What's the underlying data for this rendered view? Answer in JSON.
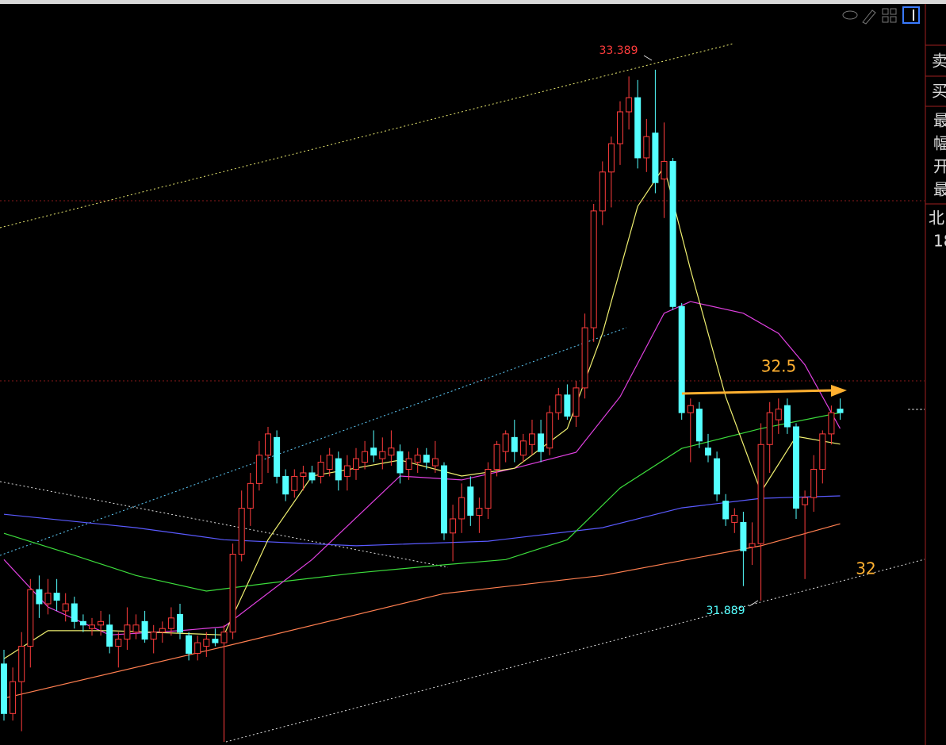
{
  "chart_data": {
    "type": "candlestick",
    "ylim": [
      31.481,
      33.586
    ],
    "up_color": "#ff3c3c",
    "down_color": "#54ffff",
    "candles": [
      [
        31.71,
        31.75,
        31.55,
        31.57
      ],
      [
        31.57,
        31.7,
        31.55,
        31.66
      ],
      [
        31.66,
        31.8,
        31.52,
        31.76
      ],
      [
        31.76,
        31.95,
        31.7,
        31.92
      ],
      [
        31.92,
        31.96,
        31.84,
        31.88
      ],
      [
        31.88,
        31.95,
        31.85,
        31.91
      ],
      [
        31.91,
        31.95,
        31.86,
        31.89
      ],
      [
        31.86,
        31.91,
        31.83,
        31.88
      ],
      [
        31.88,
        31.9,
        31.81,
        31.83
      ],
      [
        31.83,
        31.85,
        31.8,
        31.82
      ],
      [
        31.81,
        31.84,
        31.79,
        31.82
      ],
      [
        31.82,
        31.86,
        31.79,
        31.83
      ],
      [
        31.82,
        31.85,
        31.74,
        31.76
      ],
      [
        31.76,
        31.8,
        31.7,
        31.78
      ],
      [
        31.78,
        31.87,
        31.75,
        31.82
      ],
      [
        31.8,
        31.85,
        31.78,
        31.82
      ],
      [
        31.83,
        31.86,
        31.77,
        31.78
      ],
      [
        31.78,
        31.82,
        31.74,
        31.8
      ],
      [
        31.8,
        31.83,
        31.77,
        31.81
      ],
      [
        31.81,
        31.87,
        31.79,
        31.84
      ],
      [
        31.85,
        31.88,
        31.78,
        31.8
      ],
      [
        31.79,
        31.8,
        31.72,
        31.74
      ],
      [
        31.74,
        31.79,
        31.72,
        31.77
      ],
      [
        31.76,
        31.8,
        31.73,
        31.78
      ],
      [
        31.78,
        31.81,
        31.76,
        31.77
      ],
      [
        31.77,
        31.82,
        31.49,
        31.8
      ],
      [
        31.8,
        32.05,
        31.78,
        32.02
      ],
      [
        32.02,
        32.2,
        32.0,
        32.15
      ],
      [
        32.15,
        32.25,
        32.1,
        32.22
      ],
      [
        32.22,
        32.34,
        32.2,
        32.3
      ],
      [
        32.3,
        32.38,
        32.25,
        32.36
      ],
      [
        32.35,
        32.37,
        32.22,
        32.24
      ],
      [
        32.24,
        32.26,
        32.17,
        32.19
      ],
      [
        32.2,
        32.26,
        32.18,
        32.24
      ],
      [
        32.24,
        32.27,
        32.2,
        32.25
      ],
      [
        32.25,
        32.27,
        32.22,
        32.23
      ],
      [
        32.24,
        32.3,
        32.22,
        32.28
      ],
      [
        32.26,
        32.32,
        32.24,
        32.3
      ],
      [
        32.29,
        32.31,
        32.2,
        32.23
      ],
      [
        32.24,
        32.3,
        32.2,
        32.27
      ],
      [
        32.26,
        32.32,
        32.23,
        32.29
      ],
      [
        32.28,
        32.34,
        32.26,
        32.31
      ],
      [
        32.32,
        32.37,
        32.28,
        32.3
      ],
      [
        32.29,
        32.35,
        32.26,
        32.31
      ],
      [
        32.3,
        32.37,
        32.27,
        32.32
      ],
      [
        32.31,
        32.33,
        32.22,
        32.25
      ],
      [
        32.26,
        32.31,
        32.23,
        32.29
      ],
      [
        32.28,
        32.32,
        32.25,
        32.3
      ],
      [
        32.3,
        32.32,
        32.26,
        32.28
      ],
      [
        32.27,
        32.34,
        32.25,
        32.29
      ],
      [
        32.27,
        32.28,
        32.06,
        32.08
      ],
      [
        32.08,
        32.16,
        32.0,
        32.12
      ],
      [
        32.12,
        32.22,
        32.08,
        32.18
      ],
      [
        32.21,
        32.24,
        32.1,
        32.13
      ],
      [
        32.13,
        32.18,
        32.08,
        32.15
      ],
      [
        32.15,
        32.28,
        32.12,
        32.26
      ],
      [
        32.26,
        32.34,
        32.24,
        32.33
      ],
      [
        32.31,
        32.37,
        32.28,
        32.36
      ],
      [
        32.35,
        32.4,
        32.28,
        32.31
      ],
      [
        32.3,
        32.36,
        32.28,
        32.34
      ],
      [
        32.33,
        32.4,
        32.3,
        32.36
      ],
      [
        32.36,
        32.4,
        32.28,
        32.31
      ],
      [
        32.32,
        32.44,
        32.3,
        32.42
      ],
      [
        32.42,
        32.49,
        32.4,
        32.47
      ],
      [
        32.47,
        32.5,
        32.4,
        32.41
      ],
      [
        32.41,
        32.51,
        32.38,
        32.49
      ],
      [
        32.49,
        32.7,
        32.46,
        32.66
      ],
      [
        32.66,
        33.01,
        32.62,
        32.99
      ],
      [
        32.99,
        33.13,
        32.95,
        33.1
      ],
      [
        33.1,
        33.2,
        33.0,
        33.18
      ],
      [
        33.18,
        33.3,
        33.12,
        33.27
      ],
      [
        33.27,
        33.37,
        33.22,
        33.31
      ],
      [
        33.31,
        33.36,
        33.11,
        33.14
      ],
      [
        33.14,
        33.25,
        33.1,
        33.2
      ],
      [
        33.21,
        33.389,
        33.04,
        33.07
      ],
      [
        33.08,
        33.24,
        32.97,
        33.13
      ],
      [
        33.13,
        33.14,
        32.71,
        32.72
      ],
      [
        32.72,
        32.73,
        32.4,
        32.42
      ],
      [
        32.42,
        32.46,
        32.28,
        32.44
      ],
      [
        32.43,
        32.45,
        32.32,
        32.34
      ],
      [
        32.32,
        32.36,
        32.28,
        32.3
      ],
      [
        32.29,
        32.31,
        32.17,
        32.19
      ],
      [
        32.17,
        32.19,
        32.1,
        32.12
      ],
      [
        32.11,
        32.15,
        32.08,
        32.13
      ],
      [
        32.11,
        32.14,
        31.93,
        32.03
      ],
      [
        32.04,
        32.11,
        31.99,
        32.05
      ],
      [
        32.05,
        32.39,
        31.889,
        32.33
      ],
      [
        32.33,
        32.45,
        32.25,
        32.42
      ],
      [
        32.4,
        32.46,
        32.36,
        32.43
      ],
      [
        32.44,
        32.46,
        32.36,
        32.38
      ],
      [
        32.38,
        32.39,
        32.12,
        32.15
      ],
      [
        32.16,
        32.2,
        31.95,
        32.18
      ],
      [
        32.18,
        32.3,
        32.14,
        32.26
      ],
      [
        32.26,
        32.37,
        32.22,
        32.36
      ],
      [
        32.36,
        32.44,
        32.33,
        32.42
      ],
      [
        32.43,
        32.46,
        32.4,
        32.42
      ]
    ],
    "lines": [
      {
        "color": "#ff7f50",
        "x": [
          0,
          25,
          50,
          68,
          86,
          95
        ],
        "values": [
          31.613,
          31.759,
          31.909,
          31.96,
          32.044,
          32.106
        ]
      },
      {
        "color": "#5a5aff",
        "x": [
          0,
          15,
          25,
          40,
          55,
          68,
          77,
          86,
          95
        ],
        "values": [
          32.133,
          32.095,
          32.061,
          32.044,
          32.057,
          32.095,
          32.151,
          32.178,
          32.185
        ]
      },
      {
        "color": "#3cdc3c",
        "x": [
          0,
          8,
          15,
          23,
          30,
          40,
          50,
          57,
          64,
          70,
          77,
          86,
          95
        ],
        "values": [
          32.079,
          32.017,
          31.96,
          31.916,
          31.938,
          31.967,
          31.99,
          32.005,
          32.061,
          32.207,
          32.319,
          32.375,
          32.42
        ]
      },
      {
        "color": "#e040e0",
        "x": [
          0,
          5,
          12,
          20,
          25,
          35,
          45,
          52,
          58,
          65,
          70,
          75,
          78,
          84,
          88,
          91,
          95
        ],
        "values": [
          32.005,
          31.871,
          31.792,
          31.804,
          31.815,
          32.005,
          32.241,
          32.23,
          32.263,
          32.308,
          32.465,
          32.701,
          32.734,
          32.701,
          32.644,
          32.555,
          32.375
        ]
      },
      {
        "color": "#f0f070",
        "x": [
          0,
          5,
          12,
          25,
          30,
          35,
          45,
          52,
          58,
          64,
          68,
          72,
          75,
          78,
          82,
          86,
          90,
          95
        ],
        "values": [
          31.725,
          31.804,
          31.804,
          31.792,
          32.061,
          32.241,
          32.286,
          32.241,
          32.263,
          32.375,
          32.644,
          33.003,
          33.115,
          32.824,
          32.465,
          32.196,
          32.353,
          32.331
        ]
      }
    ],
    "annotations": [
      "32.5",
      "32"
    ],
    "side_panel": [
      "卖",
      "买",
      "最",
      "幅",
      "开",
      "最",
      "北",
      "18"
    ]
  }
}
